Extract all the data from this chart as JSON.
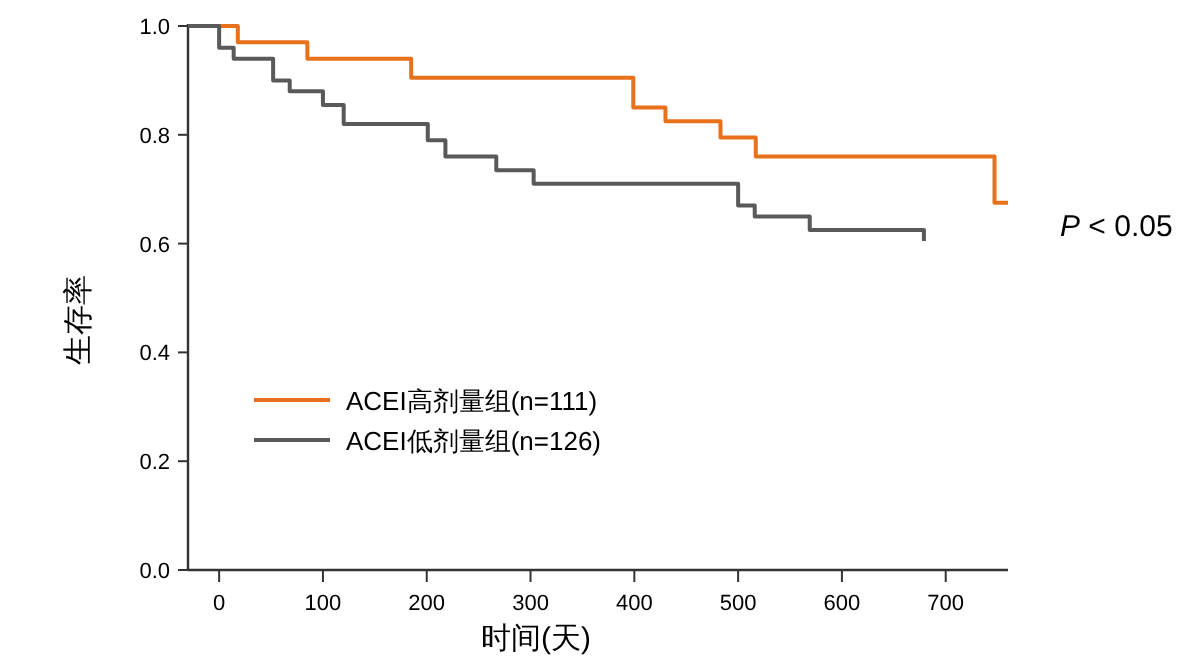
{
  "chart_data": {
    "type": "step",
    "xlabel": "时间(天)",
    "ylabel": "生存率",
    "xlim": [
      -30,
      760
    ],
    "ylim": [
      0,
      1
    ],
    "xticks": [
      0,
      100,
      200,
      300,
      400,
      500,
      600,
      700
    ],
    "yticks": [
      {
        "value": 0,
        "label": "0.0"
      },
      0.2,
      0.4,
      0.6,
      0.8,
      {
        "value": 1,
        "label": "1.0"
      }
    ],
    "legend": "bottom left",
    "line_style": "solid",
    "series": [
      {
        "name": "ACEI高剂量组(n=111)",
        "color": "#e8711c",
        "x": [
          -30,
          18,
          85,
          185,
          399,
          430,
          483,
          517,
          747,
          760
        ],
        "values": [
          1,
          0.97,
          0.94,
          0.905,
          0.85,
          0.825,
          0.795,
          0.76,
          0.675,
          0.675
        ]
      },
      {
        "name": "ACEI低剂量组(n=126)",
        "color": "#595959",
        "x": [
          -30,
          0,
          14,
          52,
          68,
          100,
          120,
          201,
          218,
          267,
          303,
          500,
          516,
          569,
          679
        ],
        "values": [
          1,
          0.96,
          0.94,
          0.9,
          0.88,
          0.855,
          0.82,
          0.79,
          0.76,
          0.735,
          0.71,
          0.67,
          0.65,
          0.625,
          0.605
        ]
      }
    ],
    "annotations": [
      "*P* < 0.05"
    ]
  }
}
